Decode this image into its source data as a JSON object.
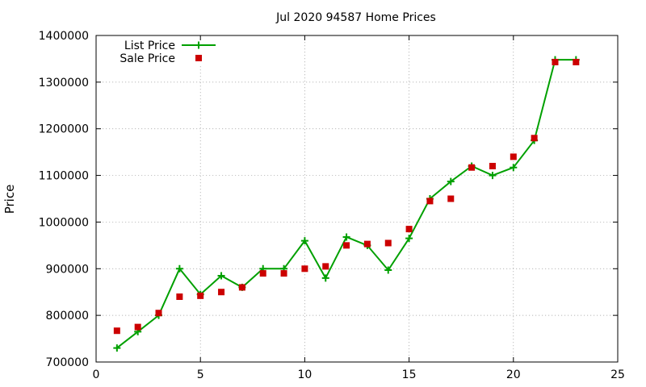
{
  "chart_data": {
    "type": "line",
    "title": "Jul 2020 94587 Home Prices",
    "xlabel": "",
    "ylabel": "Price",
    "xlim": [
      0,
      25
    ],
    "ylim": [
      700000,
      1400000
    ],
    "x_ticks": [
      0,
      5,
      10,
      15,
      20,
      25
    ],
    "y_ticks": [
      700000,
      800000,
      900000,
      1000000,
      1100000,
      1200000,
      1300000,
      1400000
    ],
    "grid": true,
    "legend_position": "top-left",
    "x": [
      1,
      2,
      3,
      4,
      5,
      6,
      7,
      8,
      9,
      10,
      11,
      12,
      13,
      14,
      15,
      16,
      17,
      18,
      19,
      20,
      21,
      22,
      23
    ],
    "series": [
      {
        "name": "List Price",
        "style": "line-with-plus-markers",
        "color": "#00a000",
        "values": [
          730000,
          765000,
          800000,
          900000,
          845000,
          885000,
          860000,
          900000,
          900000,
          960000,
          880000,
          968000,
          950000,
          897000,
          965000,
          1050000,
          1087000,
          1120000,
          1100000,
          1117000,
          1175000,
          1348000,
          1348000
        ]
      },
      {
        "name": "Sale Price",
        "style": "square-markers",
        "color": "#cc0000",
        "values": [
          767000,
          775000,
          805000,
          840000,
          842000,
          850000,
          860000,
          890000,
          890000,
          900000,
          905000,
          950000,
          953000,
          955000,
          985000,
          1045000,
          1050000,
          1117000,
          1120000,
          1140000,
          1180000,
          1343000,
          1343000
        ]
      }
    ]
  }
}
